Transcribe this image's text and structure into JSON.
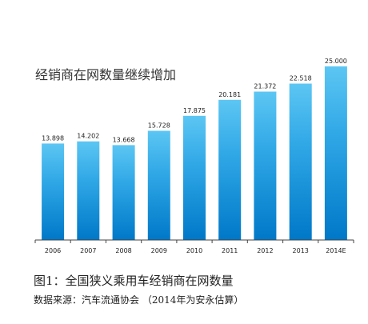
{
  "chart_data": {
    "type": "bar",
    "title": "经销商在网数量继续增加",
    "categories": [
      "2006",
      "2007",
      "2008",
      "2009",
      "2010",
      "2011",
      "2012",
      "2013",
      "2014E"
    ],
    "values": [
      13898,
      14202,
      13668,
      15728,
      17875,
      20181,
      21372,
      22518,
      25000
    ],
    "value_labels": [
      "13.898",
      "14.202",
      "13.668",
      "15.728",
      "17.875",
      "20.181",
      "21.372",
      "22.518",
      "25.000"
    ],
    "ylim": [
      0,
      25000
    ],
    "grid": false,
    "bar_color_top": "#5cc6f3",
    "bar_color_bottom": "#0078c8"
  },
  "caption": "图1：全国狭义乘用车经销商在网数量",
  "source": "数据来源：汽车流通协会 （2014年为安永估算）"
}
